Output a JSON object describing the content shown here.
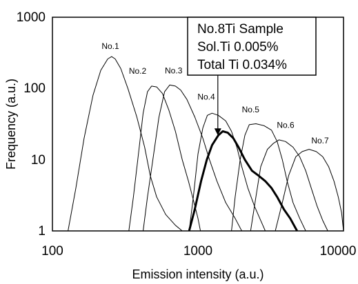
{
  "chart_data": {
    "type": "line",
    "title": "",
    "xlabel": "Emission intensity (a.u.)",
    "ylabel": "Frequency (a.u.)",
    "x_scale": "log",
    "y_scale": "log",
    "xlim": [
      100,
      10000
    ],
    "ylim": [
      1,
      1000
    ],
    "x_ticks": [
      "100",
      "1000",
      "10000"
    ],
    "y_ticks": [
      "1",
      "10",
      "100",
      "1000"
    ],
    "grid": false,
    "legend": "none",
    "series": [
      {
        "name": "No.1",
        "color": "#000000",
        "bold": false,
        "points": [
          [
            128,
            1
          ],
          [
            145,
            4
          ],
          [
            165,
            20
          ],
          [
            190,
            80
          ],
          [
            215,
            180
          ],
          [
            240,
            260
          ],
          [
            255,
            280
          ],
          [
            270,
            260
          ],
          [
            295,
            190
          ],
          [
            330,
            100
          ],
          [
            380,
            40
          ],
          [
            430,
            15
          ],
          [
            470,
            6
          ],
          [
            520,
            3
          ],
          [
            600,
            1.7
          ],
          [
            700,
            1.2
          ],
          [
            780,
            1
          ]
        ]
      },
      {
        "name": "No.2",
        "color": "#000000",
        "bold": false,
        "points": [
          [
            335,
            1
          ],
          [
            360,
            3
          ],
          [
            390,
            12
          ],
          [
            420,
            45
          ],
          [
            450,
            90
          ],
          [
            480,
            108
          ],
          [
            520,
            105
          ],
          [
            570,
            85
          ],
          [
            630,
            50
          ],
          [
            700,
            25
          ],
          [
            780,
            10
          ],
          [
            860,
            5
          ],
          [
            940,
            2.5
          ],
          [
            1000,
            1.5
          ],
          [
            1040,
            1
          ]
        ]
      },
      {
        "name": "No.3",
        "color": "#000000",
        "bold": false,
        "points": [
          [
            420,
            1
          ],
          [
            450,
            3
          ],
          [
            490,
            10
          ],
          [
            540,
            40
          ],
          [
            590,
            90
          ],
          [
            640,
            112
          ],
          [
            700,
            108
          ],
          [
            760,
            95
          ],
          [
            840,
            70
          ],
          [
            950,
            40
          ],
          [
            1080,
            20
          ],
          [
            1200,
            10
          ],
          [
            1350,
            5
          ],
          [
            1550,
            2.5
          ],
          [
            1800,
            1.5
          ],
          [
            2000,
            1
          ]
        ]
      },
      {
        "name": "No.4",
        "color": "#000000",
        "bold": false,
        "points": [
          [
            870,
            1
          ],
          [
            930,
            3
          ],
          [
            1000,
            12
          ],
          [
            1080,
            28
          ],
          [
            1160,
            42
          ],
          [
            1250,
            45
          ],
          [
            1380,
            42
          ],
          [
            1550,
            35
          ],
          [
            1700,
            25
          ],
          [
            1850,
            15
          ],
          [
            2000,
            8
          ],
          [
            2200,
            4
          ],
          [
            2450,
            2.2
          ],
          [
            2700,
            1.4
          ],
          [
            2900,
            1
          ]
        ]
      },
      {
        "name": "No.8Ti",
        "color": "#000000",
        "bold": true,
        "points": [
          [
            870,
            1
          ],
          [
            950,
            2
          ],
          [
            1050,
            5
          ],
          [
            1150,
            10
          ],
          [
            1250,
            16
          ],
          [
            1380,
            22
          ],
          [
            1480,
            25
          ],
          [
            1600,
            24
          ],
          [
            1750,
            20
          ],
          [
            1900,
            15
          ],
          [
            2100,
            10
          ],
          [
            2350,
            7
          ],
          [
            2600,
            6
          ],
          [
            2900,
            5
          ],
          [
            3200,
            4
          ],
          [
            3500,
            3
          ],
          [
            3900,
            2
          ],
          [
            4300,
            1.5
          ],
          [
            4800,
            1
          ]
        ]
      },
      {
        "name": "No.5",
        "color": "#000000",
        "bold": false,
        "points": [
          [
            1700,
            1
          ],
          [
            1800,
            3
          ],
          [
            1950,
            10
          ],
          [
            2100,
            22
          ],
          [
            2250,
            31
          ],
          [
            2500,
            32
          ],
          [
            2850,
            30
          ],
          [
            3200,
            26
          ],
          [
            3500,
            18
          ],
          [
            3800,
            10
          ],
          [
            4100,
            5
          ],
          [
            4500,
            2.5
          ],
          [
            5000,
            1.5
          ],
          [
            5500,
            1
          ]
        ]
      },
      {
        "name": "No.6",
        "color": "#000000",
        "bold": false,
        "points": [
          [
            2300,
            1
          ],
          [
            2500,
            3
          ],
          [
            2700,
            8
          ],
          [
            3000,
            14
          ],
          [
            3300,
            17
          ],
          [
            3600,
            19
          ],
          [
            4000,
            18
          ],
          [
            4500,
            15
          ],
          [
            5000,
            11
          ],
          [
            5500,
            7
          ],
          [
            6000,
            4
          ],
          [
            6600,
            2.2
          ],
          [
            7200,
            1.4
          ],
          [
            7800,
            1
          ]
        ]
      },
      {
        "name": "No.7",
        "color": "#000000",
        "bold": false,
        "points": [
          [
            3400,
            1
          ],
          [
            3800,
            2.5
          ],
          [
            4200,
            6
          ],
          [
            4700,
            11
          ],
          [
            5200,
            13
          ],
          [
            5800,
            14
          ],
          [
            6500,
            13
          ],
          [
            7200,
            11
          ],
          [
            7900,
            8
          ],
          [
            8600,
            5
          ],
          [
            9200,
            3
          ],
          [
            9700,
            1.8
          ],
          [
            10000,
            1
          ]
        ]
      }
    ],
    "series_labels": [
      {
        "text": "No.1",
        "x": 250,
        "y": 360
      },
      {
        "text": "No.2",
        "x": 385,
        "y": 160
      },
      {
        "text": "No.3",
        "x": 680,
        "y": 163
      },
      {
        "text": "No.4",
        "x": 1140,
        "y": 70
      },
      {
        "text": "No.5",
        "x": 2300,
        "y": 46
      },
      {
        "text": "No.6",
        "x": 4000,
        "y": 28
      },
      {
        "text": "No.7",
        "x": 6900,
        "y": 17
      }
    ],
    "annotation": {
      "lines": [
        "No.8Ti Sample",
        "Sol.Ti 0.005%",
        "Total Ti 0.034%"
      ],
      "arrow_target": {
        "x": 1370,
        "y": 22
      }
    }
  }
}
